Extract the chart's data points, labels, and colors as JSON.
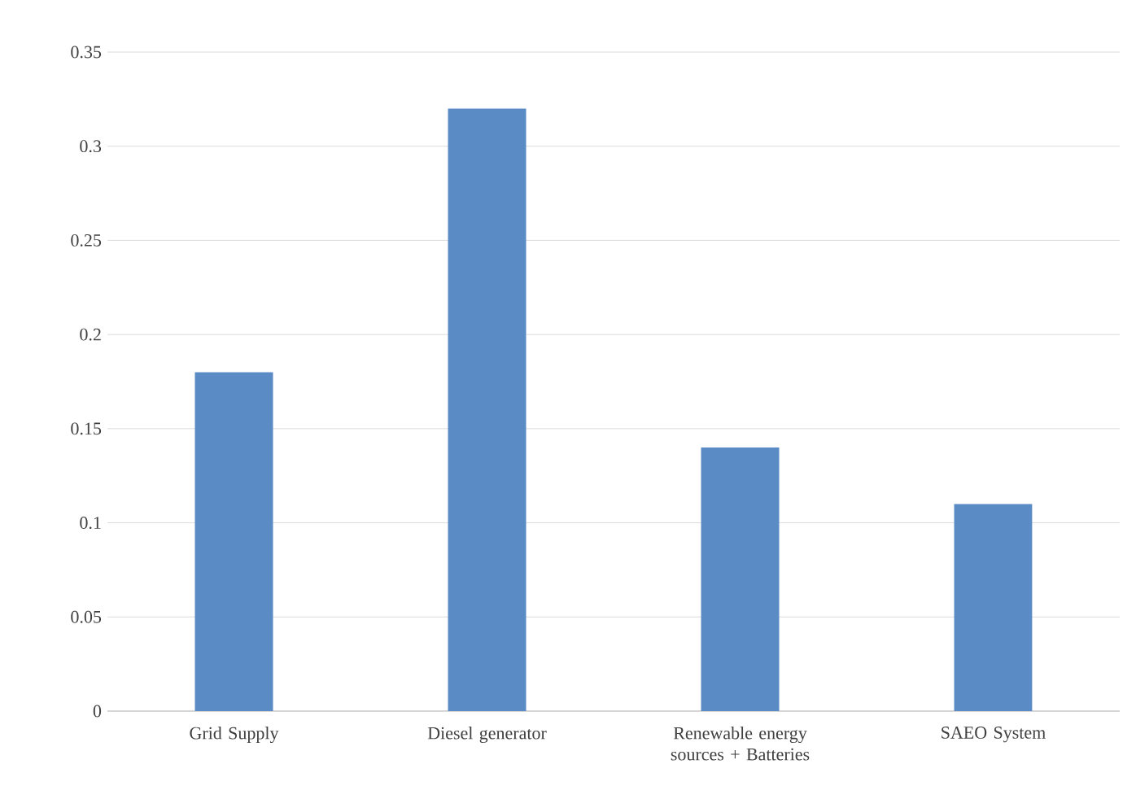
{
  "chart_data": {
    "type": "bar",
    "categories": [
      "Grid Supply",
      "Diesel generator",
      "Renewable energy sources + Batteries",
      "SAEO System"
    ],
    "values": [
      0.18,
      0.32,
      0.14,
      0.11
    ],
    "color": "#5b8bc5",
    "ylim": [
      0,
      0.35
    ],
    "yticks": [
      0,
      0.05,
      0.1,
      0.15,
      0.2,
      0.25,
      0.3,
      0.35
    ],
    "grid": "y"
  }
}
